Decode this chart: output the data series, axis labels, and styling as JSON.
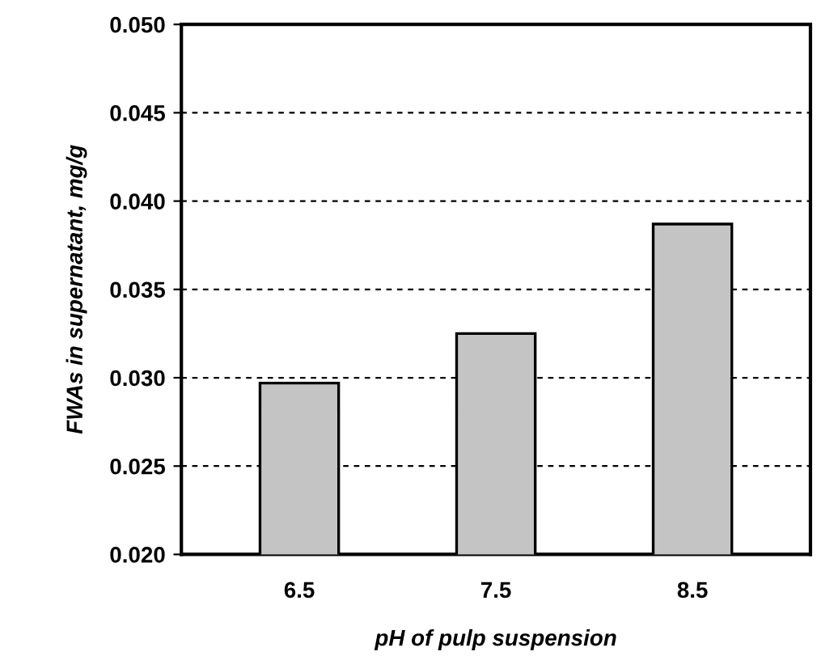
{
  "chart_data": {
    "type": "bar",
    "xlabel": "pH of pulp suspension",
    "ylabel": "FWAs in supernatant, mg/g",
    "categories": [
      "6.5",
      "7.5",
      "8.5"
    ],
    "values": [
      0.0297,
      0.0325,
      0.0387
    ],
    "color": "#c4c4c4",
    "ylim": [
      0.02,
      0.05
    ],
    "yticks": [
      {
        "value": 0.02,
        "label": "0.020"
      },
      {
        "value": 0.025,
        "label": "0.025"
      },
      {
        "value": 0.03,
        "label": "0.030"
      },
      {
        "value": 0.035,
        "label": "0.035"
      },
      {
        "value": 0.04,
        "label": "0.040"
      },
      {
        "value": 0.045,
        "label": "0.045"
      },
      {
        "value": 0.05,
        "label": "0.050"
      }
    ],
    "grid": "y",
    "legend": false
  }
}
